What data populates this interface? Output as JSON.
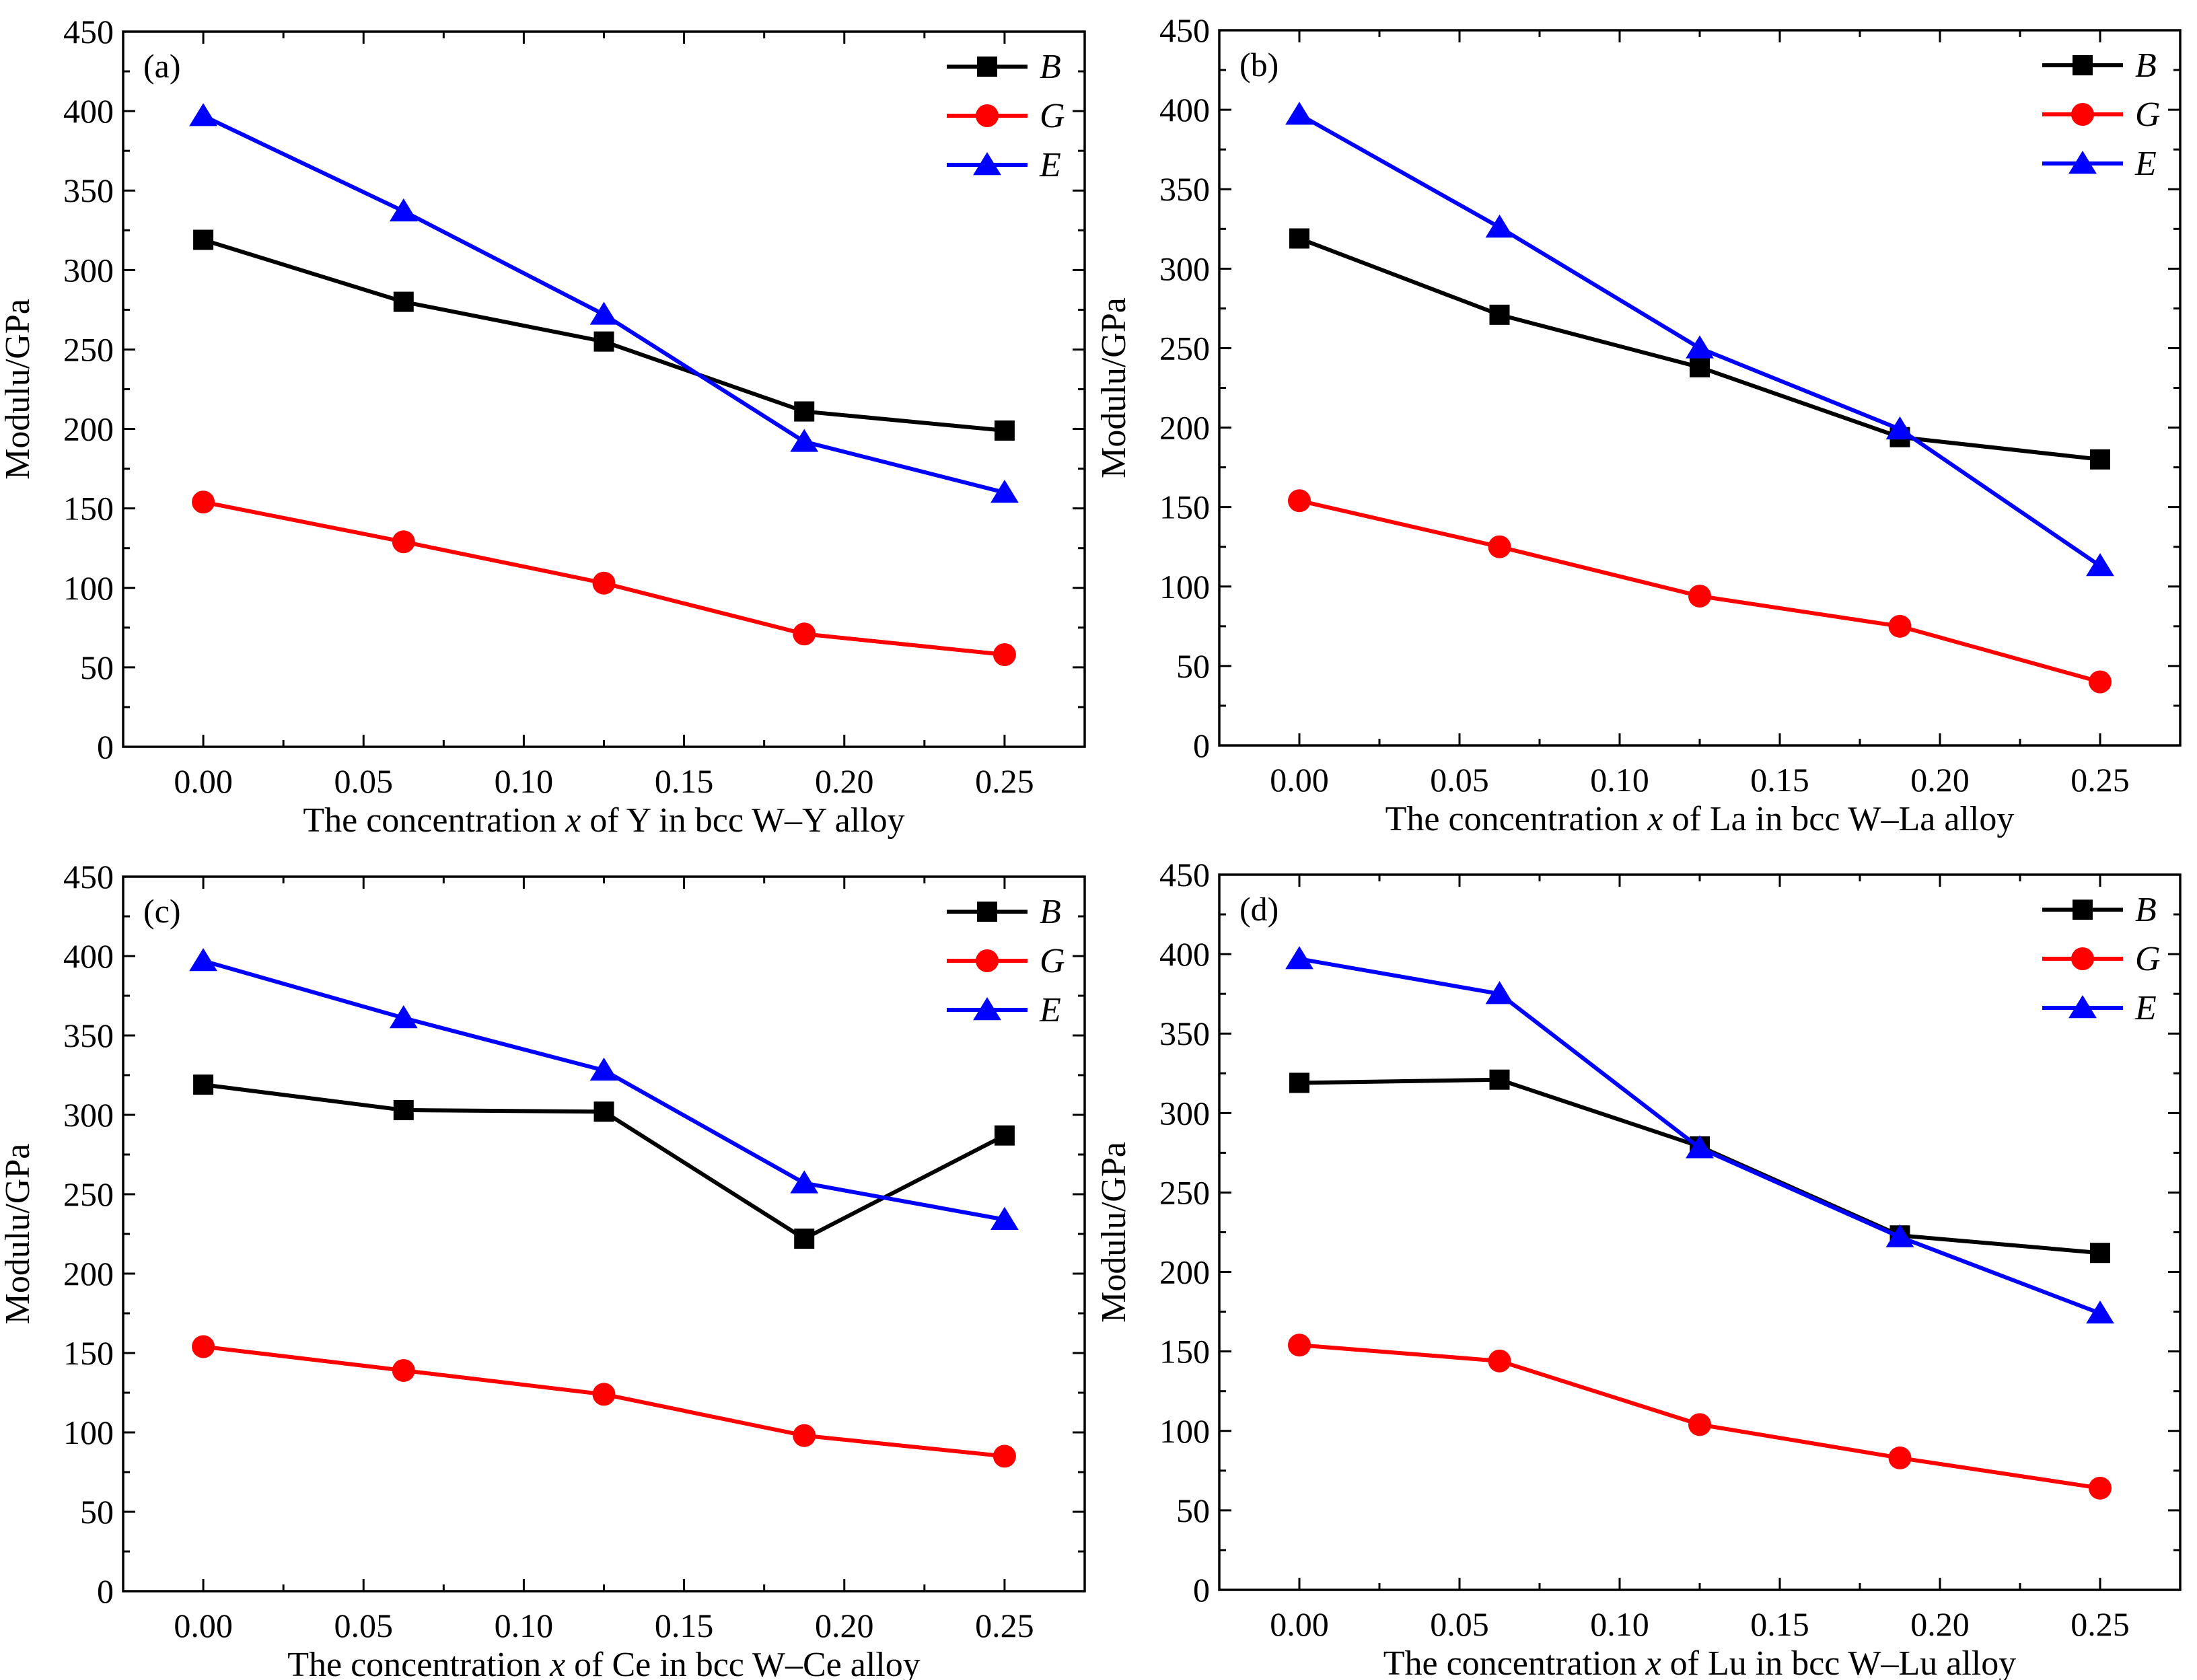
{
  "chart_data": [
    {
      "type": "line",
      "panel_label": "(a)",
      "xlabel": [
        "The concentration ",
        "x",
        " of Y in bcc W–Y alloy"
      ],
      "ylabel": "Modulu/GPa",
      "x": [
        0.0,
        0.0625,
        0.125,
        0.1875,
        0.25
      ],
      "xlim": [
        -0.025,
        0.275
      ],
      "ylim": [
        0,
        450
      ],
      "xticks": [
        "0.00",
        "0.05",
        "0.10",
        "0.15",
        "0.20",
        "0.25"
      ],
      "yticks": [
        "0",
        "50",
        "100",
        "150",
        "200",
        "250",
        "300",
        "350",
        "400",
        "450"
      ],
      "legend_position": "top-right",
      "series": [
        {
          "name": "B",
          "marker": "square",
          "color": "#000000",
          "values": [
            319,
            280,
            255,
            211,
            199
          ]
        },
        {
          "name": "G",
          "marker": "circle",
          "color": "#ff0000",
          "values": [
            154,
            129,
            103,
            71,
            58
          ]
        },
        {
          "name": "E",
          "marker": "triangle",
          "color": "#0000ff",
          "values": [
            397,
            337,
            272,
            192,
            160
          ]
        }
      ]
    },
    {
      "type": "line",
      "panel_label": "(b)",
      "xlabel": [
        "The concentration ",
        "x",
        " of La in bcc W–La alloy"
      ],
      "ylabel": "Modulu/GPa",
      "x": [
        0.0,
        0.0625,
        0.125,
        0.1875,
        0.25
      ],
      "xlim": [
        -0.025,
        0.275
      ],
      "ylim": [
        0,
        450
      ],
      "xticks": [
        "0.00",
        "0.05",
        "0.10",
        "0.15",
        "0.20",
        "0.25"
      ],
      "yticks": [
        "0",
        "50",
        "100",
        "150",
        "200",
        "250",
        "300",
        "350",
        "400",
        "450"
      ],
      "legend_position": "top-right",
      "series": [
        {
          "name": "B",
          "marker": "square",
          "color": "#000000",
          "values": [
            319,
            271,
            238,
            194,
            180
          ]
        },
        {
          "name": "G",
          "marker": "circle",
          "color": "#ff0000",
          "values": [
            154,
            125,
            94,
            75,
            40
          ]
        },
        {
          "name": "E",
          "marker": "triangle",
          "color": "#0000ff",
          "values": [
            397,
            326,
            250,
            199,
            113
          ]
        }
      ]
    },
    {
      "type": "line",
      "panel_label": "(c)",
      "xlabel": [
        "The concentration ",
        "x",
        " of  Ce in bcc W–Ce alloy"
      ],
      "ylabel": "Modulu/GPa",
      "x": [
        0.0,
        0.0625,
        0.125,
        0.1875,
        0.25
      ],
      "xlim": [
        -0.025,
        0.275
      ],
      "ylim": [
        0,
        450
      ],
      "xticks": [
        "0.00",
        "0.05",
        "0.10",
        "0.15",
        "0.20",
        "0.25"
      ],
      "yticks": [
        "0",
        "50",
        "100",
        "150",
        "200",
        "250",
        "300",
        "350",
        "400",
        "450"
      ],
      "legend_position": "top-right",
      "series": [
        {
          "name": "B",
          "marker": "square",
          "color": "#000000",
          "values": [
            319,
            303,
            302,
            222,
            287
          ]
        },
        {
          "name": "G",
          "marker": "circle",
          "color": "#ff0000",
          "values": [
            154,
            139,
            124,
            98,
            85
          ]
        },
        {
          "name": "E",
          "marker": "triangle",
          "color": "#0000ff",
          "values": [
            397,
            361,
            328,
            257,
            234
          ]
        }
      ]
    },
    {
      "type": "line",
      "panel_label": "(d)",
      "xlabel": [
        "The concentration ",
        "x",
        " of Lu in bcc W–Lu alloy"
      ],
      "ylabel": "Modulu/GPa",
      "x": [
        0.0,
        0.0625,
        0.125,
        0.1875,
        0.25
      ],
      "xlim": [
        -0.025,
        0.275
      ],
      "ylim": [
        0,
        450
      ],
      "xticks": [
        "0.00",
        "0.05",
        "0.10",
        "0.15",
        "0.20",
        "0.25"
      ],
      "yticks": [
        "0",
        "50",
        "100",
        "150",
        "200",
        "250",
        "300",
        "350",
        "400",
        "450"
      ],
      "legend_position": "top-right",
      "series": [
        {
          "name": "B",
          "marker": "square",
          "color": "#000000",
          "values": [
            319,
            321,
            279,
            223,
            212
          ]
        },
        {
          "name": "G",
          "marker": "circle",
          "color": "#ff0000",
          "values": [
            154,
            144,
            104,
            83,
            64
          ]
        },
        {
          "name": "E",
          "marker": "triangle",
          "color": "#0000ff",
          "values": [
            397,
            375,
            278,
            222,
            174
          ]
        }
      ]
    }
  ]
}
